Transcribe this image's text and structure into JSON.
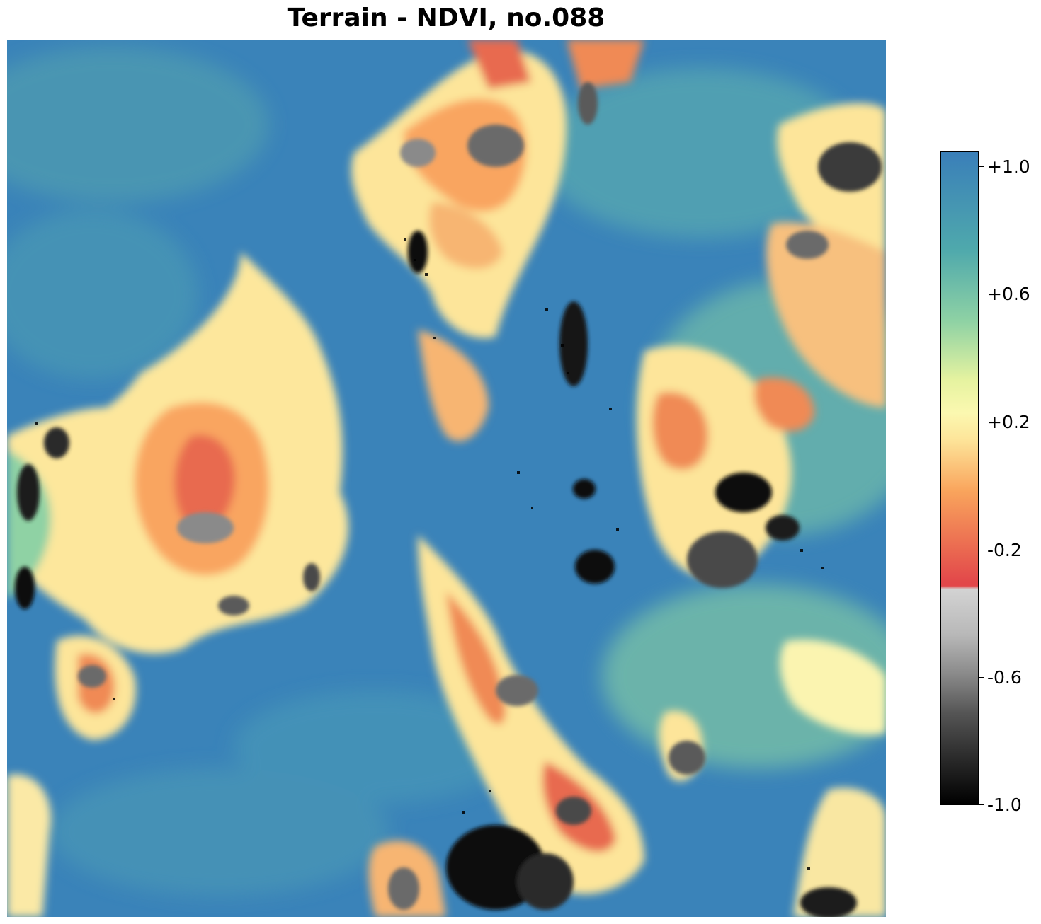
{
  "title": "Terrain - NDVI, no.088",
  "image": {
    "description_icon": "satellite-terrain-image",
    "colormap": "Spectral-style (blue→green→yellow→orange→red) above threshold, gray→black below",
    "vmin": -1.0,
    "vmax": 1.0
  },
  "colorbar": {
    "ticks": [
      {
        "value": 1.0,
        "label": "+1.0"
      },
      {
        "value": 0.6,
        "label": "+0.6"
      },
      {
        "value": 0.2,
        "label": "+0.2"
      },
      {
        "value": -0.2,
        "label": "-0.2"
      },
      {
        "value": -0.6,
        "label": "-0.6"
      },
      {
        "value": -1.0,
        "label": "-1.0"
      }
    ],
    "colors": {
      "top": "#3a7fb9",
      "teal": "#4fa9ac",
      "green": "#8fd2a4",
      "light_yellow": "#fbf8b0",
      "yellow": "#fde59a",
      "orange": "#f9a45c",
      "red": "#e2474a",
      "light_gray": "#d3d3d3",
      "gray": "#8a8a8a",
      "dark": "#2a2a2a",
      "bottom": "#000000"
    }
  }
}
